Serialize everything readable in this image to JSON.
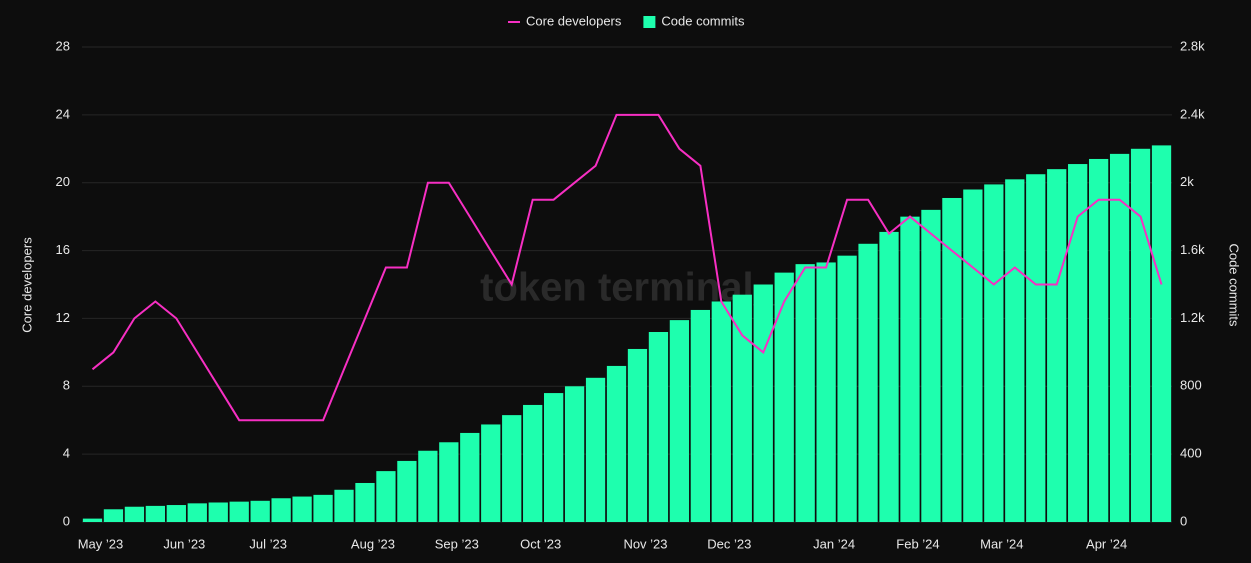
{
  "chart_data": {
    "type": "bar-line",
    "watermark": "token terminal_",
    "y_label": "Core developers",
    "y2_label": "Code commits",
    "categories": [
      "May ’23",
      null,
      null,
      null,
      "Jun ’23",
      null,
      null,
      null,
      "Jul ’23",
      null,
      null,
      null,
      null,
      "Aug ’23",
      null,
      null,
      null,
      "Sep ’23",
      null,
      null,
      null,
      "Oct ’23",
      null,
      null,
      null,
      null,
      "Nov ’23",
      null,
      null,
      null,
      "Dec ’23",
      null,
      null,
      null,
      null,
      "Jan ’24",
      null,
      null,
      null,
      "Feb ’24",
      null,
      null,
      null,
      "Mar ’24",
      null,
      null,
      null,
      null,
      "Apr ’24",
      null,
      null,
      null
    ],
    "series": [
      {
        "name": "Core developers",
        "type": "line",
        "color": "#f72fc3",
        "axis": "y",
        "values": [
          9,
          10,
          12,
          13,
          12,
          10,
          8,
          6,
          6,
          6,
          6,
          6,
          9,
          12,
          15,
          15,
          20,
          20,
          18,
          16,
          14,
          19,
          19,
          20,
          21,
          24,
          24,
          24,
          22,
          21,
          13,
          11,
          10,
          13,
          15,
          15,
          19,
          19,
          17,
          18,
          17,
          16,
          15,
          14,
          15,
          14,
          14,
          18,
          19,
          19,
          18,
          14
        ]
      },
      {
        "name": "Code commits",
        "type": "bar",
        "color": "#1effae",
        "axis": "y2",
        "values": [
          20,
          75,
          90,
          95,
          100,
          110,
          115,
          120,
          125,
          140,
          150,
          160,
          190,
          230,
          300,
          360,
          420,
          470,
          525,
          575,
          630,
          690,
          760,
          800,
          850,
          920,
          1020,
          1120,
          1190,
          1250,
          1300,
          1340,
          1400,
          1470,
          1520,
          1530,
          1570,
          1640,
          1710,
          1800,
          1840,
          1910,
          1960,
          1990,
          2020,
          2050,
          2080,
          2110,
          2140,
          2170,
          2200,
          2220
        ]
      }
    ],
    "ylim": [
      0,
      28
    ],
    "yticks": [
      0,
      4,
      8,
      12,
      16,
      20,
      24,
      28
    ],
    "y2lim": [
      0,
      2800
    ],
    "y2ticks": [
      0,
      400,
      800,
      {
        "value": 1200,
        "label": "1.2k"
      },
      {
        "value": 1600,
        "label": "1.6k"
      },
      {
        "value": 2000,
        "label": "2k"
      },
      {
        "value": 2400,
        "label": "2.4k"
      },
      {
        "value": 2800,
        "label": "2.8k"
      }
    ],
    "grid": true,
    "legend": "top"
  }
}
